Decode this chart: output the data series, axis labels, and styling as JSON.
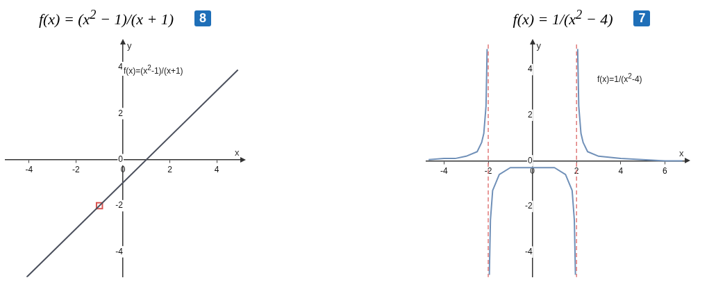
{
  "chart_data": [
    {
      "type": "line",
      "title": "f(x) = (x$^{2}$ − 1)/(x + 1)",
      "xlabel": "x",
      "ylabel": "y",
      "xlim": [
        -5,
        5
      ],
      "ylim": [
        -5.1,
        5
      ],
      "xticks": [
        -4,
        -2,
        0,
        2,
        4
      ],
      "yticks": [
        -4,
        -2,
        0,
        2,
        4
      ],
      "grid": false,
      "legend": false,
      "annotations": [
        "8",
        "f(x)=(x$^{2}$-1)/(x+1)"
      ],
      "series": [
        {
          "type": "line",
          "color": "#4a4f5c",
          "marker": "none",
          "x": [
            -4.1,
            4.9
          ],
          "values": [
            -5.1,
            3.9
          ]
        },
        {
          "type": "scatter",
          "color": "#d9534f",
          "marker": "square",
          "x": [
            -1
          ],
          "values": [
            -2
          ]
        }
      ]
    },
    {
      "type": "line",
      "title": "f(x) = 1/(x$^{2}$ − 4)",
      "xlabel": "x",
      "ylabel": "y",
      "xlim": [
        -4.8,
        6.9
      ],
      "ylim": [
        -5.1,
        5.1
      ],
      "xticks": [
        -4,
        -2,
        0,
        2,
        4,
        6
      ],
      "yticks": [
        -4,
        -2,
        0,
        2,
        4
      ],
      "grid": false,
      "legend": false,
      "annotations": [
        "7",
        "f(x)=1/(x$^{2}$-4)"
      ],
      "ref_lines": [
        {
          "axis": "x",
          "value": -2,
          "color": "#e07a7a",
          "line_style": "dashed"
        },
        {
          "axis": "x",
          "value": 2,
          "color": "#e07a7a",
          "line_style": "dashed"
        }
      ],
      "series": [
        {
          "type": "line",
          "color": "#7090b8",
          "marker": "none",
          "x": [
            -4.7,
            -4,
            -3.5,
            -3,
            -2.5,
            -2.3,
            -2.2,
            -2.1,
            -2.05,
            -2,
            -1.95,
            -1.9,
            -1.8,
            -1.5,
            -1,
            0,
            1,
            1.5,
            1.8,
            1.9,
            1.95,
            2,
            2.05,
            2.1,
            2.2,
            2.3,
            2.5,
            3,
            4,
            5,
            6,
            6.8
          ],
          "values": [
            0.05,
            0.1,
            0.1,
            0.2,
            0.4,
            0.8,
            1.2,
            2.4,
            4.9,
            null,
            -5,
            -2.6,
            -1.3,
            -0.6,
            -0.3,
            -0.3,
            -0.3,
            -0.6,
            -1.3,
            -2.6,
            -5,
            null,
            4.9,
            2.4,
            1.2,
            0.8,
            0.4,
            0.2,
            0.1,
            0.05,
            0,
            0
          ]
        }
      ]
    }
  ]
}
